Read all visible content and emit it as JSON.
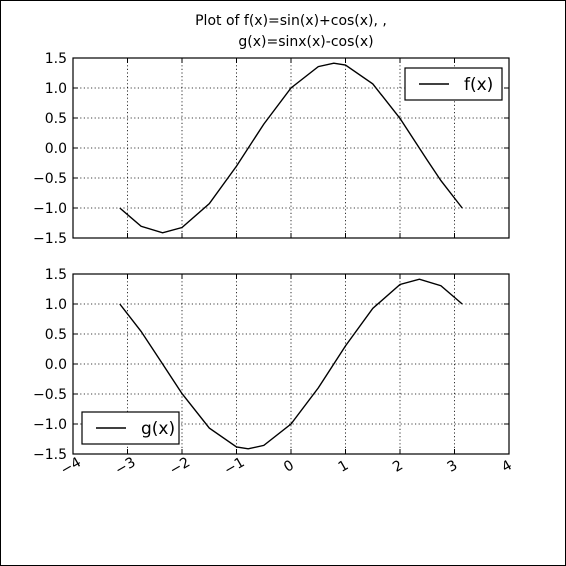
{
  "chart_data": {
    "title_line1": "Plot of f(x)=sin(x)+cos(x), ,",
    "title_line2": "g(x)=sinx(x)-cos(x)",
    "xlim": [
      -4,
      4
    ],
    "x_ticks": [
      -4,
      -3,
      -2,
      -1,
      0,
      1,
      2,
      3,
      4
    ],
    "x_tick_labels": [
      "−4",
      "−3",
      "−2",
      "−1",
      "0",
      "1",
      "2",
      "3",
      "4"
    ],
    "x_tick_rotation_deg": -30,
    "grid": true,
    "subplots": [
      {
        "type": "line",
        "legend_label": "f(x)",
        "legend_position": "upper-right",
        "ylim": [
          -1.5,
          1.5
        ],
        "y_ticks": [
          1.5,
          1.0,
          0.5,
          0.0,
          -0.5,
          -1.0,
          -1.5
        ],
        "y_tick_labels": [
          "1.5",
          "1.0",
          "0.5",
          "0.0",
          "−0.5",
          "−1.0",
          "−1.5"
        ],
        "show_x_tick_labels": false,
        "x": [
          -3.1416,
          -2.75,
          -2.356,
          -2.0,
          -1.5,
          -1.0,
          -0.5,
          0.0,
          0.5,
          0.785,
          1.0,
          1.5,
          2.0,
          2.5,
          2.75,
          3.1416
        ],
        "y": [
          -1.0,
          -1.305,
          -1.414,
          -1.325,
          -0.927,
          -0.301,
          0.398,
          1.0,
          1.357,
          1.414,
          1.382,
          1.068,
          0.493,
          -0.203,
          -0.543,
          -1.0
        ]
      },
      {
        "type": "line",
        "legend_label": "g(x)",
        "legend_position": "lower-left",
        "ylim": [
          -1.5,
          1.5
        ],
        "y_ticks": [
          1.5,
          1.0,
          0.5,
          0.0,
          -0.5,
          -1.0,
          -1.5
        ],
        "y_tick_labels": [
          "1.5",
          "1.0",
          "0.5",
          "0.0",
          "−0.5",
          "−1.0",
          "−1.5"
        ],
        "show_x_tick_labels": true,
        "x": [
          -3.1416,
          -2.75,
          -2.356,
          -2.0,
          -1.5,
          -1.0,
          -0.785,
          -0.5,
          0.0,
          0.5,
          1.0,
          1.5,
          2.0,
          2.356,
          2.75,
          3.1416
        ],
        "y": [
          1.0,
          0.543,
          0.0,
          -0.493,
          -1.068,
          -1.382,
          -1.414,
          -1.357,
          -1.0,
          -0.398,
          0.301,
          0.927,
          1.325,
          1.414,
          1.305,
          1.0
        ]
      }
    ]
  }
}
